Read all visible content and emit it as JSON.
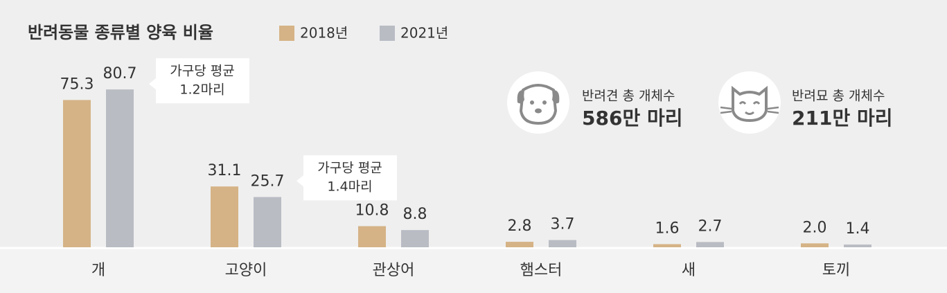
{
  "chart_data": {
    "type": "bar",
    "title": "반려동물 종류별 양육 비율",
    "categories": [
      "개",
      "고양이",
      "관상어",
      "햄스터",
      "새",
      "토끼"
    ],
    "series": [
      {
        "name": "2018년",
        "color": "#d5b386",
        "values": [
          75.3,
          31.1,
          10.8,
          2.8,
          1.6,
          2.0
        ],
        "value_labels": [
          "75.3",
          "31.1",
          "10.8",
          "2.8",
          "1.6",
          "2.0"
        ]
      },
      {
        "name": "2021년",
        "color": "#b9bcc3",
        "values": [
          80.7,
          25.7,
          8.8,
          3.7,
          2.7,
          1.4
        ],
        "value_labels": [
          "80.7",
          "25.7",
          "8.8",
          "3.7",
          "2.7",
          "1.4"
        ]
      }
    ],
    "ylim": [
      0,
      85
    ],
    "annotations": [
      {
        "category": "개",
        "text": [
          "가구당 평균",
          "1.2마리"
        ]
      },
      {
        "category": "고양이",
        "text": [
          "가구당 평균",
          "1.4마리"
        ]
      }
    ],
    "stats": [
      {
        "label": "반려견 총 개체수",
        "value": "586만 마리"
      },
      {
        "label": "반려묘 총 개체수",
        "value": "211만 마리"
      }
    ]
  }
}
